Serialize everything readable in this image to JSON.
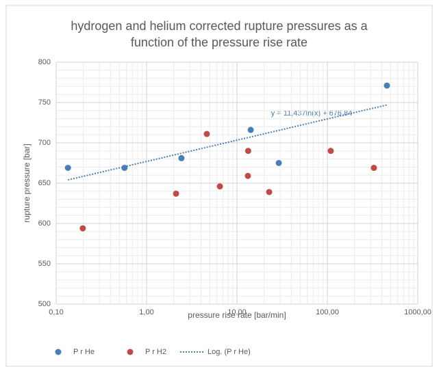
{
  "chart_data": {
    "type": "scatter",
    "title": "hydrogen and helium corrected rupture pressures as a function of the pressure rise rate",
    "x_label": "pressure rise rate [bar/min]",
    "y_label": "rupture pressure [bar]",
    "annotation": "y = 11,437ln(x) + 676,84",
    "x_log": true,
    "grid": true,
    "minor_grid": true,
    "legend": "bottom",
    "xlim": [
      0.1,
      1000
    ],
    "xticks": [
      {
        "value": 0.1,
        "label": "0,10"
      },
      {
        "value": 1,
        "label": "1,00"
      },
      {
        "value": 10,
        "label": "10,00"
      },
      {
        "value": 100,
        "label": "100,00"
      },
      {
        "value": 1000,
        "label": "1000,00"
      }
    ],
    "ylim": [
      500,
      800
    ],
    "yticks": [
      500,
      550,
      600,
      650,
      700,
      750,
      800
    ],
    "series": [
      {
        "name": "P r He",
        "color": "#4a7ebb",
        "x": [
          0.135,
          0.57,
          2.43,
          14.2,
          29,
          456
        ],
        "values": [
          669,
          669,
          681,
          716,
          675,
          771
        ]
      },
      {
        "name": "P r H2",
        "color": "#be4b48",
        "x": [
          0.197,
          2.12,
          4.64,
          6.47,
          13.2,
          13.3,
          22.7,
          109,
          327
        ],
        "values": [
          594,
          637,
          711,
          646,
          659,
          690,
          639,
          690,
          669
        ]
      },
      {
        "name": "Log. (P r He)",
        "color": "#4a7ebb",
        "line": "dotted",
        "x": [
          0.135,
          456
        ],
        "values": [
          654,
          747
        ]
      }
    ]
  }
}
